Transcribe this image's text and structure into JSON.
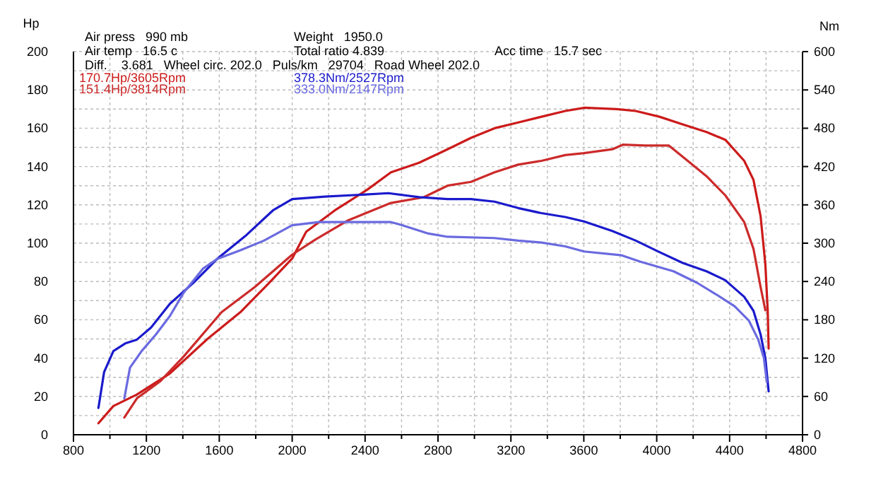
{
  "chart_data": {
    "type": "line",
    "xlim": [
      800,
      4800
    ],
    "ylim": [
      0,
      200
    ],
    "y2lim": [
      0,
      600
    ],
    "ylabel": "Hp",
    "y2label": "Nm",
    "xticks": [
      800,
      {
        "value": 1000,
        "label": null
      },
      1200,
      {
        "value": 1400,
        "label": null
      },
      1600,
      {
        "value": 1800,
        "label": null
      },
      2000,
      {
        "value": 2200,
        "label": null
      },
      2400,
      {
        "value": 2600,
        "label": null
      },
      2800,
      {
        "value": 3000,
        "label": null
      },
      3200,
      {
        "value": 3400,
        "label": null
      },
      3600,
      {
        "value": 3800,
        "label": null
      },
      4000,
      {
        "value": 4200,
        "label": null
      },
      4400,
      {
        "value": 4600,
        "label": null
      },
      4800
    ],
    "yticks": [
      0,
      {
        "value": 10,
        "label": null
      },
      20,
      {
        "value": 30,
        "label": null
      },
      40,
      {
        "value": 50,
        "label": null
      },
      60,
      {
        "value": 70,
        "label": null
      },
      80,
      {
        "value": 90,
        "label": null
      },
      100,
      {
        "value": 110,
        "label": null
      },
      120,
      {
        "value": 130,
        "label": null
      },
      140,
      {
        "value": 150,
        "label": null
      },
      160,
      {
        "value": 170,
        "label": null
      },
      180,
      {
        "value": 190,
        "label": null
      },
      200
    ],
    "y2ticks": [
      0,
      60,
      120,
      180,
      240,
      300,
      360,
      420,
      480,
      540,
      600
    ],
    "grid": true,
    "legend": "top left",
    "marker": "none",
    "line_style": "solid",
    "annotations": [
      "Air press   990 mb",
      "Air temp   16.5 c",
      "Diff.    3.681   Wheel circ. 202.0   Puls/km   29704   Road Wheel 202.0",
      "Weight   1950.0",
      "Total ratio 4.839",
      "Acc time   15.7 sec"
    ],
    "series": [
      {
        "name": "170.7Hp/3605Rpm",
        "color": "#cc1a1a",
        "x": [
          937,
          1019,
          1148,
          1329,
          1535,
          1716,
          1871,
          2000,
          2077,
          2232,
          2413,
          2542,
          2696,
          2852,
          2981,
          3110,
          3240,
          3368,
          3498,
          3605,
          3782,
          3885,
          4015,
          4143,
          4273,
          4376,
          4480,
          4531,
          4570,
          4596,
          4609,
          4614
        ],
        "values": [
          6,
          15,
          21,
          32,
          50,
          64,
          79,
          92,
          106,
          117,
          128,
          137,
          142,
          149,
          155,
          160,
          163,
          166,
          169,
          170.7,
          170,
          169,
          166,
          162,
          158,
          154,
          143,
          133,
          114,
          89,
          65,
          45
        ]
      },
      {
        "name": "151.4Hp/3814Rpm",
        "color": "#cc2a2a",
        "x": [
          1079,
          1148,
          1277,
          1406,
          1613,
          1794,
          2000,
          2129,
          2309,
          2542,
          2722,
          2852,
          2981,
          3110,
          3240,
          3368,
          3498,
          3601,
          3756,
          3814,
          3937,
          4066,
          4170,
          4273,
          4376,
          4480,
          4531,
          4570,
          4596
        ],
        "values": [
          9,
          19,
          28,
          41,
          64,
          77,
          94,
          102,
          112,
          121,
          124,
          130,
          132,
          137,
          141,
          143,
          146,
          147,
          149,
          151.4,
          151,
          151,
          143,
          135,
          125,
          111,
          97,
          77,
          65
        ]
      },
      {
        "name": "378.3Nm/2527Rpm",
        "color": "#1a1acc",
        "axis": "y2",
        "x": [
          937,
          968,
          1019,
          1084,
          1148,
          1226,
          1329,
          1458,
          1587,
          1742,
          1897,
          2000,
          2180,
          2387,
          2527,
          2696,
          2852,
          2981,
          3110,
          3240,
          3368,
          3498,
          3601,
          3756,
          3885,
          4015,
          4143,
          4273,
          4376,
          4480,
          4531,
          4570,
          4596,
          4614
        ],
        "values": [
          42,
          98,
          131,
          143,
          149,
          168,
          205,
          238,
          275,
          311,
          352,
          369,
          373,
          376,
          378.3,
          372,
          369,
          369,
          365,
          355,
          347,
          341,
          334,
          319,
          304,
          286,
          269,
          256,
          242,
          216,
          194,
          157,
          120,
          68
        ]
      },
      {
        "name": "333.0Nm/2147Rpm",
        "color": "#6a6ae0",
        "axis": "y2",
        "x": [
          1079,
          1110,
          1174,
          1252,
          1329,
          1406,
          1510,
          1587,
          1716,
          1845,
          2000,
          2147,
          2309,
          2542,
          2593,
          2748,
          2852,
          3110,
          3240,
          3368,
          3498,
          3601,
          3808,
          3911,
          4092,
          4221,
          4325,
          4428,
          4505,
          4557,
          4588,
          4604
        ],
        "values": [
          57,
          105,
          131,
          157,
          186,
          223,
          260,
          275,
          289,
          304,
          328,
          333,
          333,
          333,
          329,
          315,
          310,
          308,
          304,
          301,
          295,
          287,
          281,
          271,
          256,
          238,
          220,
          201,
          179,
          149,
          120,
          83
        ]
      }
    ]
  }
}
